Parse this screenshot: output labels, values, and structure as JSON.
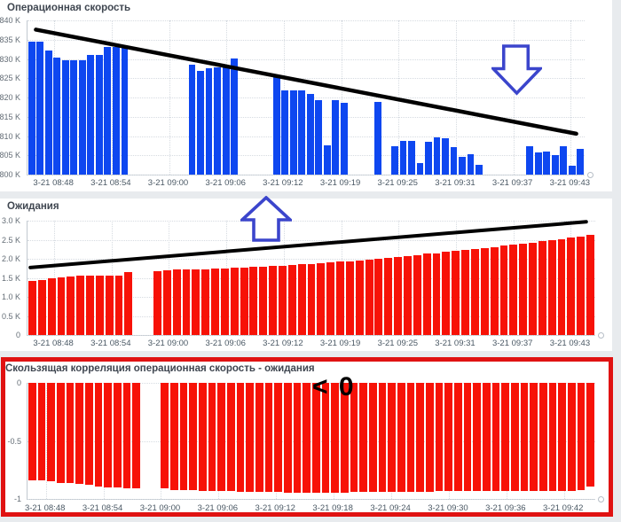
{
  "page": {
    "background": "#e8ebee",
    "panel_background": "#ffffff"
  },
  "icons": {
    "down_arrow": {
      "name": "block-arrow-down",
      "color": "#3b45cc",
      "fill": "#ffffff"
    },
    "up_arrow": {
      "name": "block-arrow-up",
      "color": "#3b45cc",
      "fill": "#ffffff"
    }
  },
  "chart_data": [
    {
      "type": "bar",
      "title": "Операционная скорость",
      "bar_color": "#0e47f0",
      "unit": "K",
      "ylim": [
        800,
        840
      ],
      "grid": true,
      "yticks": [
        {
          "v": 840,
          "label": "840 K"
        },
        {
          "v": 835,
          "label": "835 K"
        },
        {
          "v": 830,
          "label": "830 K"
        },
        {
          "v": 825,
          "label": "825 K"
        },
        {
          "v": 820,
          "label": "820 K"
        },
        {
          "v": 815,
          "label": "815 K"
        },
        {
          "v": 810,
          "label": "810 K"
        },
        {
          "v": 805,
          "label": "805 K"
        },
        {
          "v": 800,
          "label": "800 K"
        }
      ],
      "xticks": [
        "3-21 08:48",
        "3-21 08:54",
        "3-21 09:00",
        "3-21 09:06",
        "3-21 09:12",
        "3-21 09:19",
        "3-21 09:25",
        "3-21 09:31",
        "3-21 09:37",
        "3-21 09:43"
      ],
      "tick_start_frac": 0.048,
      "tick_step_frac": 0.103,
      "values": [
        834.5,
        834.5,
        832.3,
        830.3,
        829.6,
        829.6,
        829.6,
        831,
        831,
        833.2,
        833.2,
        833,
        null,
        null,
        null,
        null,
        null,
        null,
        null,
        828.6,
        826.9,
        827.5,
        827.9,
        828,
        830.1,
        null,
        null,
        null,
        null,
        825.4,
        821.8,
        821.8,
        821.8,
        820.9,
        819.4,
        807.5,
        819.4,
        818.6,
        null,
        null,
        null,
        818.9,
        null,
        807.4,
        808.7,
        808.7,
        803.1,
        808.5,
        809.6,
        809.5,
        807.1,
        804.7,
        805.3,
        802.6,
        null,
        null,
        null,
        null,
        null,
        807.4,
        805.8,
        806,
        805.1,
        807.4,
        802.4,
        806.6
      ],
      "trend": {
        "color": "#000000",
        "width": 4.5,
        "x1f": 0.015,
        "y1": 837.6,
        "x2f": 0.985,
        "y2": 810.6
      }
    },
    {
      "type": "bar",
      "title": "Ожидания",
      "bar_color": "#f71207",
      "unit": "K",
      "ylim": [
        0,
        3
      ],
      "grid": true,
      "yticks": [
        {
          "v": 3,
          "label": "3.0 K"
        },
        {
          "v": 2.5,
          "label": "2.5 K"
        },
        {
          "v": 2,
          "label": "2.0 K"
        },
        {
          "v": 1.5,
          "label": "1.5 K"
        },
        {
          "v": 1,
          "label": "1.0 K"
        },
        {
          "v": 0.5,
          "label": "0.5 K"
        },
        {
          "v": 0,
          "label": "0"
        }
      ],
      "xticks": [
        "3-21 08:48",
        "3-21 08:54",
        "3-21 09:00",
        "3-21 09:06",
        "3-21 09:12",
        "3-21 09:19",
        "3-21 09:25",
        "3-21 09:31",
        "3-21 09:37",
        "3-21 09:43"
      ],
      "tick_start_frac": 0.047,
      "tick_step_frac": 0.1011,
      "values": [
        1.43,
        1.45,
        1.49,
        1.52,
        1.54,
        1.55,
        1.55,
        1.55,
        1.56,
        1.57,
        1.65,
        null,
        null,
        1.67,
        1.69,
        1.72,
        1.73,
        1.73,
        1.73,
        1.75,
        1.75,
        1.76,
        1.77,
        1.78,
        1.8,
        1.81,
        1.82,
        1.84,
        1.85,
        1.87,
        1.89,
        1.9,
        1.92,
        1.94,
        1.96,
        1.98,
        2.0,
        2.03,
        2.05,
        2.08,
        2.1,
        2.13,
        2.15,
        2.18,
        2.2,
        2.23,
        2.26,
        2.28,
        2.31,
        2.34,
        2.37,
        2.4,
        2.43,
        2.46,
        2.49,
        2.52,
        2.55,
        2.58,
        2.62
      ],
      "trend": {
        "color": "#000000",
        "width": 4,
        "x1f": 0.005,
        "y1": 1.77,
        "x2f": 0.984,
        "y2": 2.97
      }
    },
    {
      "type": "bar",
      "title": "Скользящая корреляция операционная скорость - ожидания",
      "bar_color": "#f71207",
      "frame_color": "#e01212",
      "annotation": "< 0",
      "hang": true,
      "ylim": [
        -1,
        0
      ],
      "grid": true,
      "yticks": [
        {
          "v": 0,
          "label": "0"
        },
        {
          "v": -0.5,
          "label": "-0.5"
        },
        {
          "v": -1,
          "label": "-1"
        }
      ],
      "xticks": [
        "3-21 08:48",
        "3-21 08:54",
        "3-21 09:00",
        "3-21 09:06",
        "3-21 09:12",
        "3-21 09:18",
        "3-21 09:24",
        "3-21 09:30",
        "3-21 09:36",
        "3-21 09:42"
      ],
      "tick_start_frac": 0.0323,
      "tick_step_frac": 0.1014,
      "values": [
        -0.84,
        -0.84,
        -0.85,
        -0.86,
        -0.86,
        -0.87,
        -0.88,
        -0.89,
        -0.9,
        -0.9,
        -0.91,
        -0.91,
        null,
        null,
        -0.91,
        -0.92,
        -0.92,
        -0.92,
        -0.93,
        -0.93,
        -0.93,
        -0.93,
        -0.94,
        -0.94,
        -0.94,
        -0.94,
        -0.94,
        -0.95,
        -0.95,
        -0.95,
        -0.95,
        -0.95,
        -0.95,
        -0.95,
        -0.94,
        -0.94,
        -0.94,
        -0.94,
        -0.94,
        -0.94,
        -0.94,
        -0.94,
        -0.94,
        -0.93,
        -0.93,
        -0.93,
        -0.93,
        -0.93,
        -0.93,
        -0.93,
        -0.93,
        -0.93,
        -0.93,
        -0.93,
        -0.93,
        -0.93,
        -0.93,
        -0.93,
        -0.92,
        -0.89
      ]
    }
  ]
}
